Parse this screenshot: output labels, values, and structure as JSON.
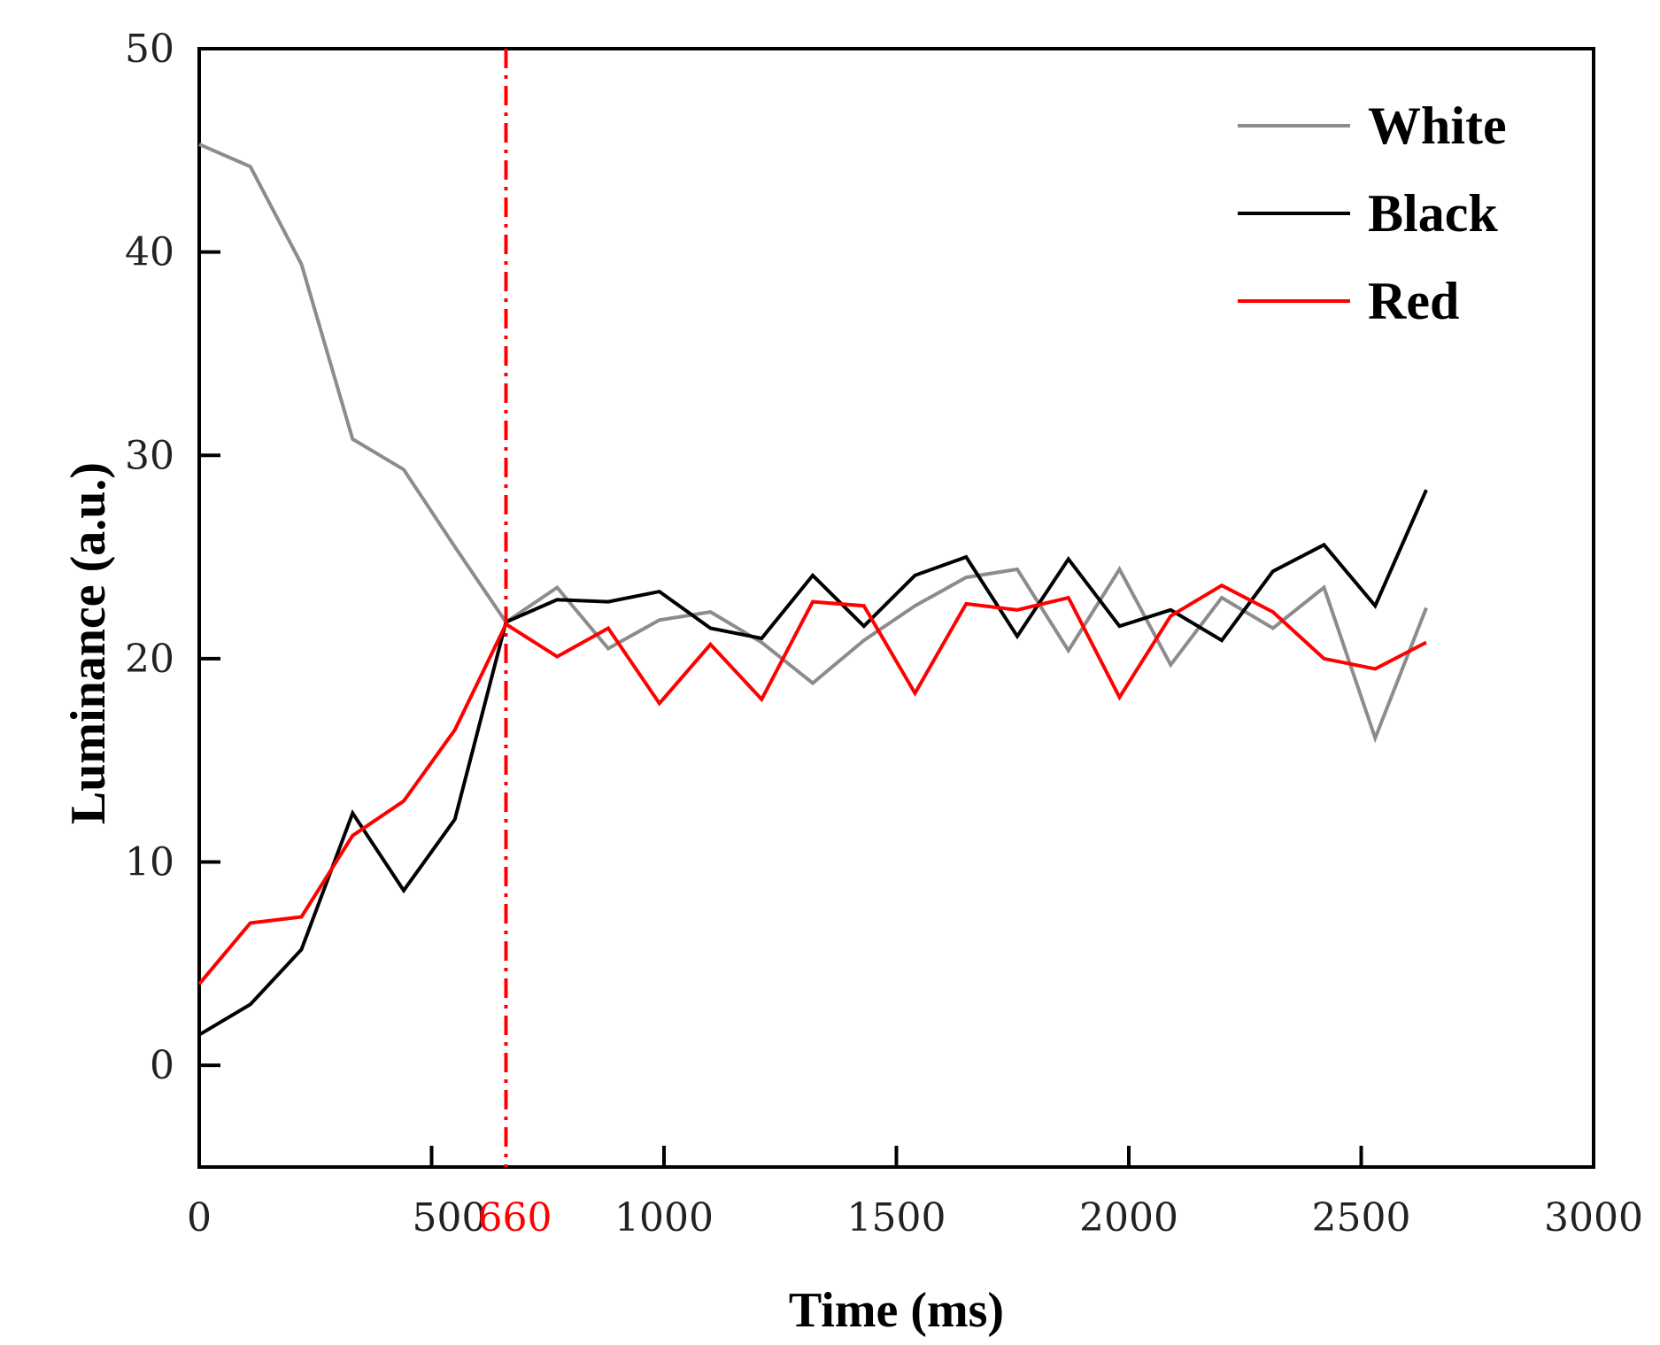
{
  "chart_data": {
    "type": "line",
    "xlabel": "Time (ms)",
    "ylabel": "Luminance (a.u.)",
    "xlim": [
      0,
      3000
    ],
    "ylim": [
      -5,
      50
    ],
    "xticks": [
      0,
      500,
      1000,
      1500,
      2000,
      2500,
      3000
    ],
    "yticks": [
      0,
      10,
      20,
      30,
      40,
      50
    ],
    "grid": false,
    "legend_position": "top-right",
    "x": [
      0,
      110,
      220,
      330,
      440,
      550,
      660,
      770,
      880,
      990,
      1100,
      1210,
      1320,
      1430,
      1540,
      1650,
      1760,
      1870,
      1980,
      2090,
      2200,
      2310,
      2420,
      2530,
      2640
    ],
    "series": [
      {
        "name": "White",
        "color": "#8c8c8c",
        "values": [
          45.3,
          44.2,
          39.4,
          30.8,
          29.3,
          25.5,
          21.8,
          23.5,
          20.5,
          21.9,
          22.3,
          20.8,
          18.8,
          20.9,
          22.6,
          24.0,
          24.4,
          20.4,
          24.4,
          19.7,
          23.0,
          21.5,
          23.5,
          16.1,
          22.5
        ]
      },
      {
        "name": "Black",
        "color": "#000000",
        "values": [
          1.5,
          3.0,
          5.7,
          12.4,
          8.6,
          12.1,
          21.8,
          22.9,
          22.8,
          23.3,
          21.5,
          21.0,
          24.1,
          21.6,
          24.1,
          25.0,
          21.1,
          24.9,
          21.6,
          22.4,
          20.9,
          24.3,
          25.6,
          22.6,
          28.3
        ]
      },
      {
        "name": "Red",
        "color": "#ff0000",
        "values": [
          4.0,
          7.0,
          7.3,
          11.3,
          13.0,
          16.5,
          21.7,
          20.1,
          21.5,
          17.8,
          20.7,
          18.0,
          22.8,
          22.6,
          18.3,
          22.7,
          22.4,
          23.0,
          18.1,
          22.1,
          23.6,
          22.3,
          20.0,
          19.5,
          20.8
        ]
      }
    ],
    "annotations": [
      {
        "type": "vertical-line",
        "x": 660,
        "style": "dash-dot",
        "color": "#ff0000",
        "label": "660"
      }
    ]
  }
}
